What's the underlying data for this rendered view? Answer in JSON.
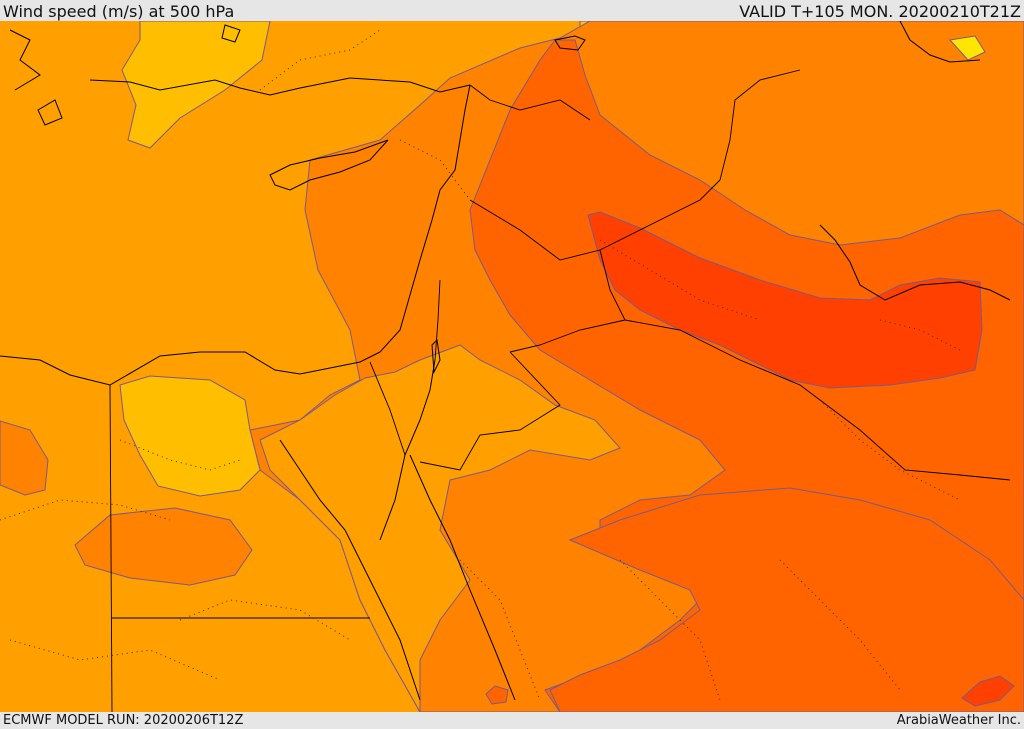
{
  "header": {
    "title": "Wind speed (m/s) at 500 hPa",
    "valid_time": "VALID T+105 MON. 20200210T21Z"
  },
  "footer": {
    "model_run": "ECMWF MODEL RUN: 20200206T12Z",
    "credit": "ArabiaWeather Inc."
  },
  "map": {
    "region": "Eastern Mediterranean / Middle East",
    "colors": {
      "base": "#ff9f00",
      "light_yellow": "#ffbf00",
      "yellow": "#ffe600",
      "pale": "#ffdca8",
      "orange": "#ff8200",
      "dark_orange": "#ff6400",
      "red_orange": "#ff4000",
      "contour": "#7a5a8a",
      "border": "#000000"
    }
  }
}
